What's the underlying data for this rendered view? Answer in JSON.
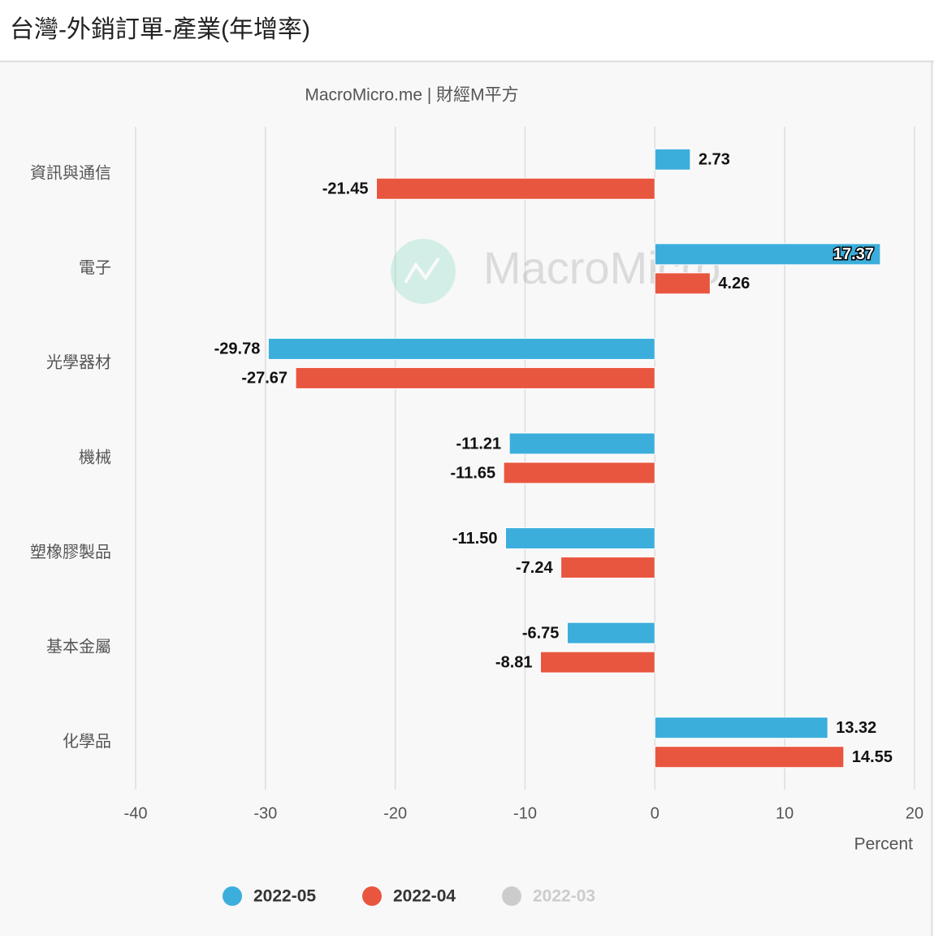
{
  "chart_data": {
    "type": "bar",
    "orientation": "horizontal",
    "title": "台灣-外銷訂單-產業(年增率)",
    "subtitle": "MacroMicro.me | 財經M平方",
    "watermark": "MacroMicro",
    "x_label": "Percent",
    "categories": [
      "資訊與通信",
      "電子",
      "光學器材",
      "機械",
      "塑橡膠製品",
      "基本金屬",
      "化學品"
    ],
    "series": [
      {
        "name": "2022-05",
        "color": "#3caedb",
        "visible": true,
        "values": [
          2.73,
          17.37,
          -29.78,
          -11.21,
          -11.5,
          -6.75,
          13.32
        ],
        "value_labels": [
          "2.73",
          "17.37",
          "-29.78",
          "-11.21",
          "-11.50",
          "-6.75",
          "13.32"
        ]
      },
      {
        "name": "2022-04",
        "color": "#e9563f",
        "visible": true,
        "values": [
          -21.45,
          4.26,
          -27.67,
          -11.65,
          -7.24,
          -8.81,
          14.55
        ],
        "value_labels": [
          "-21.45",
          "4.26",
          "-27.67",
          "-11.65",
          "-7.24",
          "-8.81",
          "14.55"
        ]
      },
      {
        "name": "2022-03",
        "color": "#cccccc",
        "visible": false,
        "values": [
          null,
          null,
          null,
          null,
          null,
          null,
          null
        ]
      }
    ],
    "xlim": [
      -40,
      20
    ],
    "xticks": [
      -40,
      -30,
      -20,
      -10,
      0,
      10,
      20
    ],
    "grid": true
  }
}
